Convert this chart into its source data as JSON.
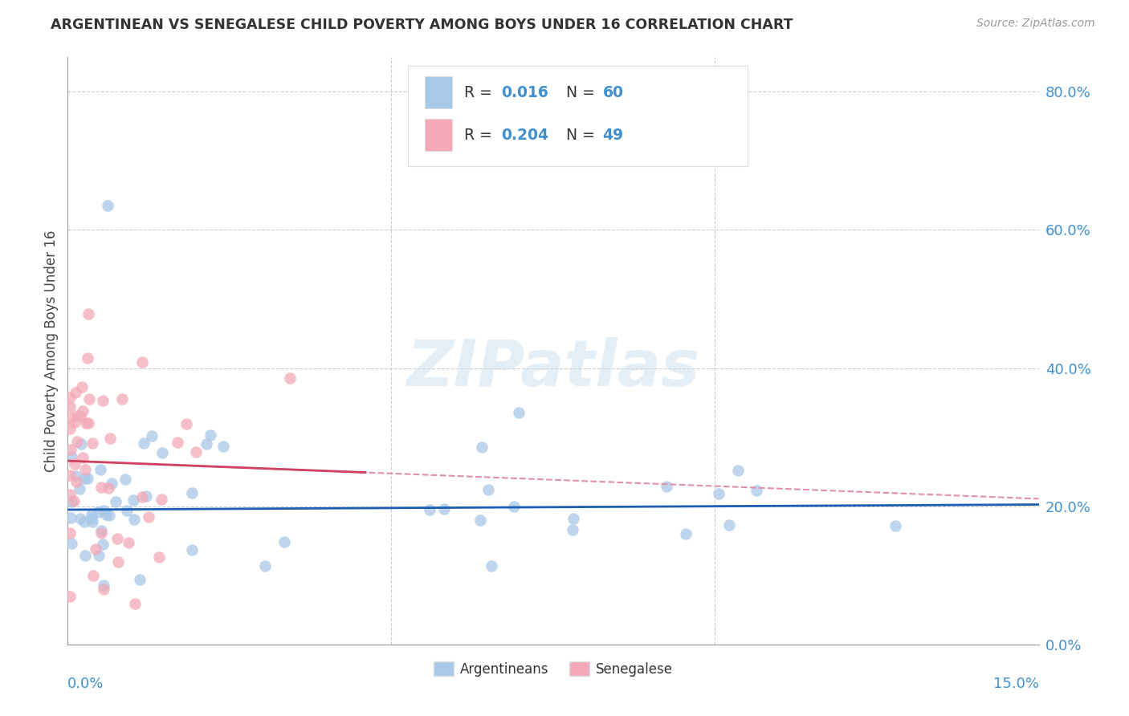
{
  "title": "ARGENTINEAN VS SENEGALESE CHILD POVERTY AMONG BOYS UNDER 16 CORRELATION CHART",
  "source": "Source: ZipAtlas.com",
  "ylabel": "Child Poverty Among Boys Under 16",
  "right_yticks": [
    0.0,
    0.2,
    0.4,
    0.6,
    0.8
  ],
  "right_yticklabels": [
    "0.0%",
    "20.0%",
    "40.0%",
    "60.0%",
    "80.0%"
  ],
  "xlim": [
    0.0,
    0.15
  ],
  "ylim": [
    0.0,
    0.85
  ],
  "watermark": "ZIPatlas",
  "arg_color": "#a8c8e8",
  "sen_color": "#f4a8b8",
  "arg_line_color": "#1a5fb4",
  "sen_line_color": "#d04060",
  "sen_dash_color": "#e090a8",
  "background_color": "#ffffff",
  "grid_color": "#cccccc",
  "legend_R1": "0.016",
  "legend_N1": "60",
  "legend_R2": "0.204",
  "legend_N2": "49",
  "legend_text_color": "#4090d0",
  "legend_label_color": "#333333"
}
